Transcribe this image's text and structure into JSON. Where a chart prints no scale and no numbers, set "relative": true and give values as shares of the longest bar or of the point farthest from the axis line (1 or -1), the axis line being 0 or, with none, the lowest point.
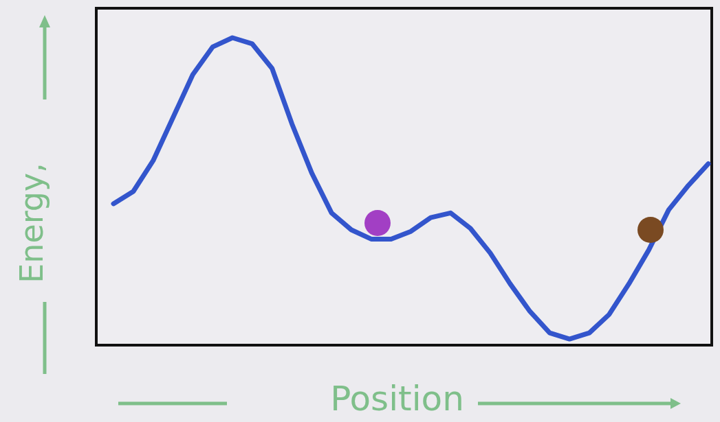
{
  "chart_data": {
    "type": "line",
    "xlabel": "Position",
    "ylabel": "Energy,",
    "relative": true,
    "categories": [
      null,
      null,
      null,
      null,
      null,
      null,
      null,
      null,
      null,
      null,
      null,
      null,
      null,
      null,
      null,
      null,
      null,
      null,
      null,
      null,
      null,
      null,
      null,
      null,
      null,
      null,
      null,
      null,
      null,
      null,
      null
    ],
    "series": [
      {
        "color": "#3355cc",
        "values": [
          0.46,
          0.5,
          0.6,
          0.74,
          0.88,
          0.97,
          1,
          0.98,
          0.9,
          0.72,
          0.56,
          0.43,
          0.375,
          0.345,
          0.345,
          0.37,
          0.415,
          0.43,
          0.38,
          0.3,
          0.2,
          0.11,
          0.04,
          0.02,
          0.04,
          0.1,
          0.2,
          0.31,
          0.44,
          0.52,
          0.59
        ]
      }
    ]
  }
}
